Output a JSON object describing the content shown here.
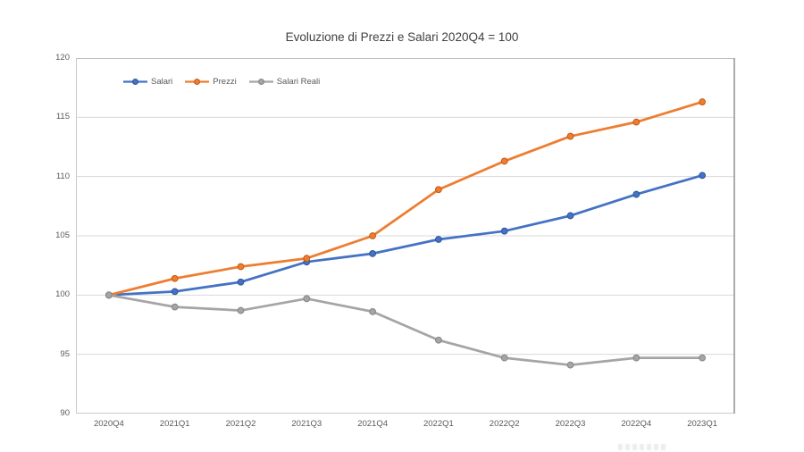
{
  "chart_data": {
    "type": "line",
    "title": "Evoluzione di Prezzi e Salari 2020Q4 = 100",
    "categories": [
      "2020Q4",
      "2021Q1",
      "2021Q2",
      "2021Q3",
      "2021Q4",
      "2022Q1",
      "2022Q2",
      "2022Q3",
      "2022Q4",
      "2023Q1"
    ],
    "series": [
      {
        "name": "Salari",
        "color": "#4472C4",
        "marker_edge": "#2E5597",
        "values": [
          100,
          100.3,
          101.1,
          102.8,
          103.5,
          104.7,
          105.4,
          106.7,
          108.5,
          110.1
        ]
      },
      {
        "name": "Prezzi",
        "color": "#ED7D31",
        "marker_edge": "#C55A11",
        "values": [
          100,
          101.4,
          102.4,
          103.1,
          105.0,
          108.9,
          111.3,
          113.4,
          114.6,
          116.3
        ]
      },
      {
        "name": "Salari Reali",
        "color": "#A5A5A5",
        "marker_edge": "#858585",
        "values": [
          100,
          99.0,
          98.7,
          99.7,
          98.6,
          96.2,
          94.7,
          94.1,
          94.7,
          94.7
        ]
      }
    ],
    "ylim": [
      90,
      120
    ],
    "yticks": [
      90,
      95,
      100,
      105,
      110,
      115,
      120
    ],
    "xlabel": "",
    "ylabel": "",
    "grid": "horizontal",
    "legend_position": "top-left-inside",
    "colors": {
      "title_text": "#404040",
      "axis_text": "#595959",
      "gridline": "#D9D9D9",
      "plot_border_light": "#C9C9C9",
      "plot_border_dark": "#A3A3A3",
      "background": "#FFFFFF"
    }
  }
}
